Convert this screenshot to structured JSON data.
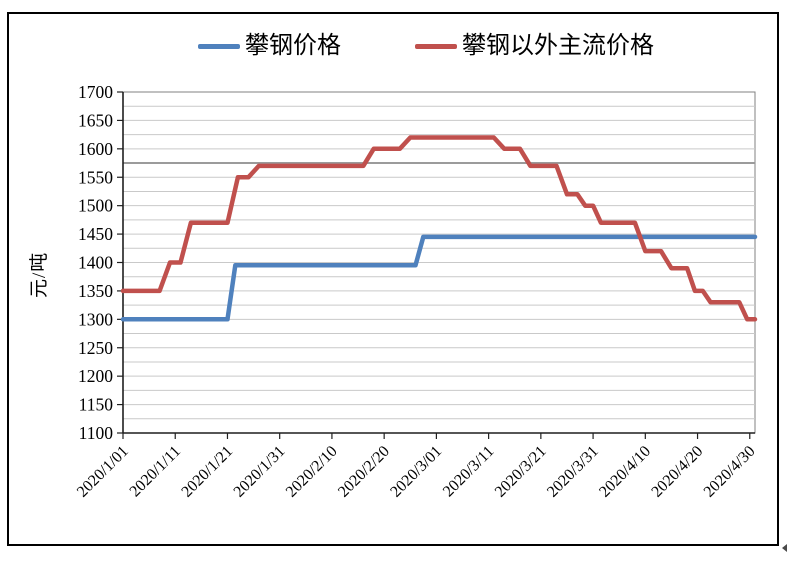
{
  "chart_data": {
    "type": "line",
    "title": "",
    "ylabel": "元/吨",
    "xlabel": "",
    "ylim": [
      1100,
      1700
    ],
    "y_tick_step": 50,
    "y_gridline_step": 25,
    "emphasized_gridline_value": 1575,
    "y_tick_labels": [
      "1700",
      "1650",
      "1600",
      "1550",
      "1500",
      "1450",
      "1400",
      "1350",
      "1300",
      "1250",
      "1200",
      "1150",
      "1100"
    ],
    "x_tick_labels": [
      "2020/1/01",
      "2020/1/11",
      "2020/1/21",
      "2020/1/31",
      "2020/2/10",
      "2020/2/20",
      "2020/3/01",
      "2020/3/11",
      "2020/3/21",
      "2020/3/31",
      "2020/4/10",
      "2020/4/20",
      "2020/4/30"
    ],
    "x_tick_days": [
      0,
      10,
      20,
      30,
      40,
      50,
      60,
      70,
      80,
      90,
      100,
      110,
      120
    ],
    "x_domain_days": [
      0,
      121
    ],
    "grid": true,
    "legend_position": "top",
    "series": [
      {
        "name": "攀钢价格",
        "color": "#4F81BD",
        "unit": "元/吨",
        "breakpoints_day_value": [
          [
            0,
            1300
          ],
          [
            20,
            1300
          ],
          [
            21.5,
            1395
          ],
          [
            56,
            1395
          ],
          [
            57.5,
            1445
          ],
          [
            121,
            1445
          ]
        ]
      },
      {
        "name": "攀钢以外主流价格",
        "color": "#C0504D",
        "unit": "元/吨",
        "breakpoints_day_value": [
          [
            0,
            1350
          ],
          [
            7,
            1350
          ],
          [
            9,
            1400
          ],
          [
            11,
            1400
          ],
          [
            13,
            1470
          ],
          [
            20,
            1470
          ],
          [
            22,
            1550
          ],
          [
            24,
            1550
          ],
          [
            26,
            1570
          ],
          [
            46,
            1570
          ],
          [
            48,
            1600
          ],
          [
            53,
            1600
          ],
          [
            55,
            1620
          ],
          [
            71,
            1620
          ],
          [
            73,
            1600
          ],
          [
            76,
            1600
          ],
          [
            78,
            1570
          ],
          [
            83,
            1570
          ],
          [
            85,
            1520
          ],
          [
            87,
            1520
          ],
          [
            88.5,
            1500
          ],
          [
            90,
            1500
          ],
          [
            91.5,
            1470
          ],
          [
            98,
            1470
          ],
          [
            100,
            1420
          ],
          [
            103,
            1420
          ],
          [
            105,
            1390
          ],
          [
            108,
            1390
          ],
          [
            109.5,
            1350
          ],
          [
            111,
            1350
          ],
          [
            112.5,
            1330
          ],
          [
            118,
            1330
          ],
          [
            119.5,
            1300
          ],
          [
            121,
            1300
          ]
        ]
      }
    ],
    "colors": {
      "axis": "#1F1F1F",
      "gridline": "#C9C9C9",
      "emphasized_gridline": "#9B9B9B",
      "plot_border": "#808080",
      "frame_border": "#000000",
      "background": "#FFFFFF",
      "text": "#000000"
    }
  }
}
